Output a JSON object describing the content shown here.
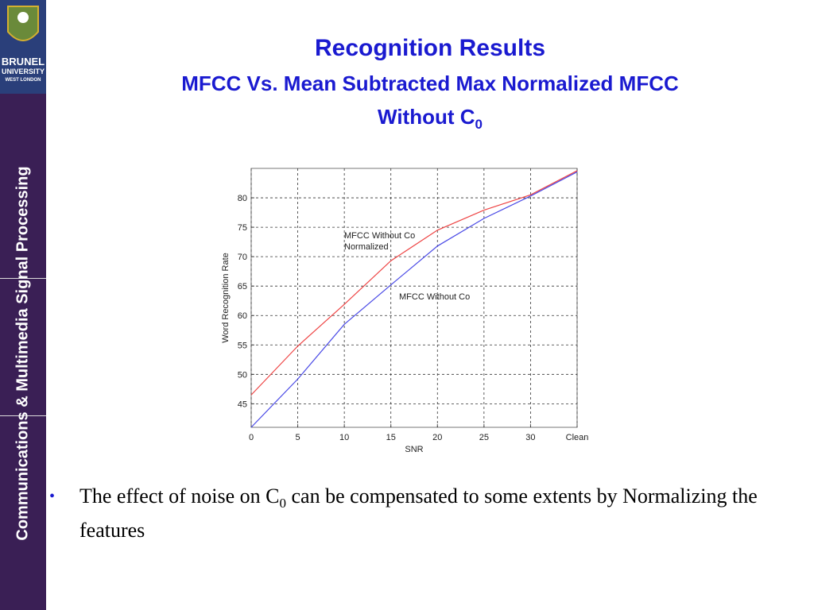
{
  "slide": {
    "title": "Recognition Results",
    "subtitle_line1": "MFCC Vs. Mean Subtracted Max Normalized MFCC",
    "subtitle_line2": "Without C",
    "subtitle_subscript": "0",
    "sidebar": "Communications & Multimedia Signal Processing",
    "logo": [
      "BRUNEL",
      "UNIVERSITY",
      "WEST LONDON"
    ],
    "bullet": {
      "marker": "•",
      "parts": [
        "The effect of noise on C",
        "0",
        " can be compensated to some extents by Normalizing the features"
      ]
    }
  },
  "chart_data": {
    "type": "line",
    "xlabel": "SNR",
    "ylabel": "Word Recognition Rate",
    "x": [
      0,
      5,
      10,
      15,
      20,
      25,
      30,
      35
    ],
    "xlim": [
      0,
      35
    ],
    "xticks": [
      0,
      5,
      10,
      15,
      20,
      25,
      30,
      {
        "value": 35,
        "label": "Clean"
      }
    ],
    "ylim": [
      41,
      85
    ],
    "yticks": [
      45,
      50,
      55,
      60,
      65,
      70,
      75,
      80
    ],
    "grid": true,
    "series": [
      {
        "name": "MFCC Without Co Normalized",
        "color": "#ee4444",
        "values": [
          46.5,
          54.8,
          61.9,
          69.3,
          74.5,
          77.9,
          80.5,
          84.6
        ]
      },
      {
        "name": "MFCC Without Co",
        "color": "#4a4ae6",
        "values": [
          41,
          49.2,
          58.5,
          65.2,
          71.8,
          76.5,
          80.3,
          84.4
        ]
      }
    ]
  }
}
